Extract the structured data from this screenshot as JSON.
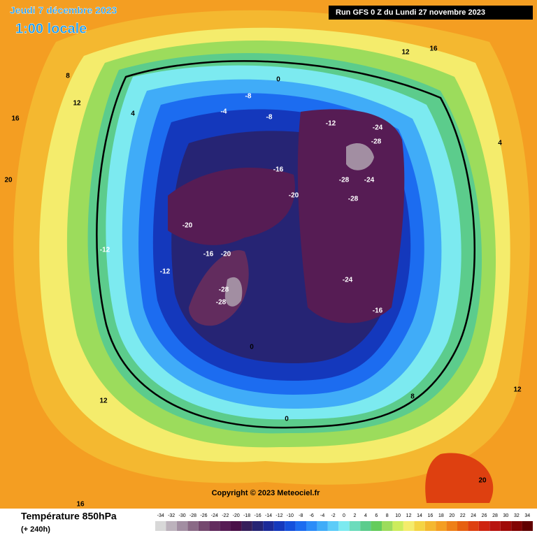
{
  "header": {
    "date": "Jeudi 7 décembre 2023",
    "time": "1:00 locale",
    "run": "Run GFS 0 Z du Lundi 27 novembre 2023"
  },
  "copyright": "Copyright © 2023 Meteociel.fr",
  "footer": {
    "title": "Température 850hPa",
    "lead": "(+ 240h)"
  },
  "scale": {
    "values": [
      -34,
      -32,
      -30,
      -28,
      -26,
      -24,
      -22,
      -20,
      -18,
      -16,
      -14,
      -12,
      -10,
      -8,
      -6,
      -4,
      -2,
      0,
      2,
      4,
      6,
      8,
      10,
      12,
      14,
      16,
      18,
      20,
      22,
      24,
      26,
      28,
      30,
      32,
      34
    ],
    "colors": [
      "#d8d8d8",
      "#bcb2bc",
      "#a28ea2",
      "#8a6a86",
      "#74486e",
      "#622c5e",
      "#561c54",
      "#4a1048",
      "#361e5a",
      "#262474",
      "#1c2a98",
      "#1438bc",
      "#1450dc",
      "#1c6cf0",
      "#2c8cf8",
      "#40acf8",
      "#5cccf8",
      "#7ceaf0",
      "#6cdcbc",
      "#5ccc8c",
      "#64cc5c",
      "#9cdc5c",
      "#ccec5c",
      "#f4ec6c",
      "#f4d444",
      "#f4b830",
      "#f49e22",
      "#ee8018",
      "#e66010",
      "#de4010",
      "#ce2410",
      "#b81410",
      "#a00a08",
      "#820404",
      "#600000"
    ]
  },
  "contour_labels": [
    -24,
    -28,
    -28,
    -28,
    -24,
    -20,
    -16,
    -12,
    -20,
    -16,
    -20,
    -28,
    -28,
    -24,
    -16,
    -12,
    -8,
    -4,
    0,
    0,
    4,
    8,
    12,
    16,
    20,
    16,
    12,
    8,
    12,
    20,
    16,
    12,
    -12,
    -8,
    4,
    0
  ]
}
